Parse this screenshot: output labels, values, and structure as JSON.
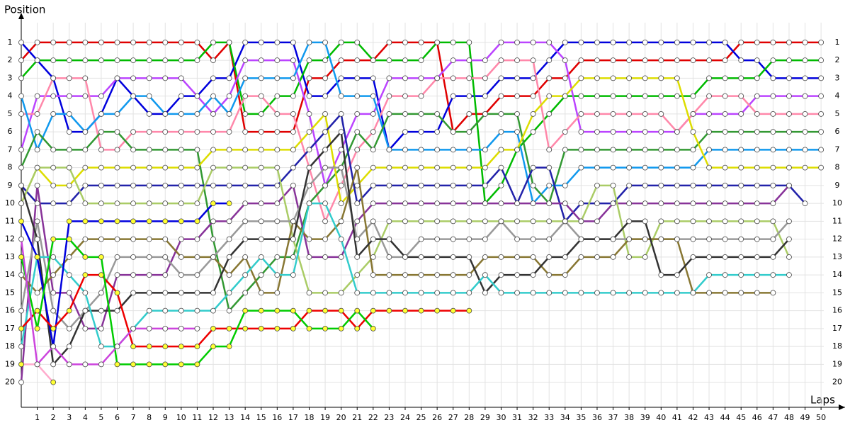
{
  "chart_data": {
    "type": "line",
    "y_axis_title": "Position",
    "x_axis_title": "Laps",
    "x": [
      0,
      1,
      2,
      3,
      4,
      5,
      6,
      7,
      8,
      9,
      10,
      11,
      12,
      13,
      14,
      15,
      16,
      17,
      18,
      19,
      20,
      21,
      22,
      23,
      24,
      25,
      26,
      27,
      28,
      29,
      30,
      31,
      32,
      33,
      34,
      35,
      36,
      37,
      38,
      39,
      40,
      41,
      42,
      43,
      44,
      45,
      46,
      47,
      48,
      49,
      50
    ],
    "xlim": [
      0,
      51.5
    ],
    "xticks": [
      1,
      2,
      3,
      4,
      5,
      6,
      7,
      8,
      9,
      10,
      11,
      12,
      13,
      14,
      15,
      16,
      17,
      18,
      19,
      20,
      21,
      22,
      23,
      24,
      25,
      26,
      27,
      28,
      29,
      30,
      31,
      32,
      33,
      34,
      35,
      36,
      37,
      38,
      39,
      40,
      41,
      42,
      43,
      44,
      45,
      46,
      47,
      48,
      49,
      50
    ],
    "ylim": [
      21.4,
      -0.5
    ],
    "yticks": [
      1,
      2,
      3,
      4,
      5,
      6,
      7,
      8,
      9,
      10,
      11,
      12,
      13,
      14,
      15,
      16,
      17,
      18,
      19,
      20
    ],
    "grid": true,
    "series": [
      {
        "color": "#e00000",
        "marker_fill": "#ffffff",
        "values": [
          2,
          1,
          1,
          1,
          1,
          1,
          1,
          1,
          1,
          1,
          1,
          1,
          2,
          1,
          6,
          6,
          6,
          6,
          3,
          3,
          2,
          2,
          2,
          1,
          1,
          1,
          1,
          6,
          5,
          5,
          4,
          4,
          4,
          3,
          3,
          2,
          2,
          2,
          2,
          2,
          2,
          2,
          2,
          2,
          2,
          1,
          1,
          1,
          1,
          1,
          1
        ]
      },
      {
        "color": "#0000dd",
        "marker_fill": "#ffffff",
        "values": [
          1,
          2,
          3,
          6,
          6,
          5,
          3,
          4,
          5,
          5,
          4,
          4,
          3,
          3,
          1,
          1,
          1,
          1,
          4,
          4,
          3,
          3,
          3,
          7,
          6,
          6,
          6,
          4,
          4,
          4,
          3,
          3,
          3,
          2,
          1,
          1,
          1,
          1,
          1,
          1,
          1,
          1,
          1,
          1,
          1,
          2,
          2,
          3,
          3,
          3,
          3
        ]
      },
      {
        "color": "#00bb00",
        "marker_fill": "#ffffff",
        "values": [
          3,
          2,
          2,
          2,
          2,
          2,
          2,
          2,
          2,
          2,
          2,
          2,
          1,
          1,
          5,
          5,
          4,
          4,
          2,
          2,
          1,
          1,
          2,
          2,
          2,
          2,
          1,
          1,
          1,
          10,
          9,
          7,
          6,
          5,
          4,
          4,
          4,
          4,
          4,
          4,
          4,
          4,
          4,
          3,
          3,
          3,
          3,
          2,
          2,
          2,
          2
        ]
      },
      {
        "color": "#bb44ff",
        "marker_fill": "#ffffff",
        "values": [
          7,
          4,
          4,
          4,
          4,
          4,
          3,
          3,
          3,
          3,
          3,
          4,
          5,
          4,
          2,
          2,
          2,
          2,
          5,
          9,
          7,
          5,
          5,
          3,
          3,
          3,
          3,
          2,
          2,
          2,
          1,
          1,
          1,
          1,
          2,
          6,
          6,
          6,
          6,
          6,
          6,
          6,
          5,
          5,
          5,
          5,
          4,
          4,
          4,
          4,
          4
        ]
      },
      {
        "color": "#ff88aa",
        "marker_fill": "#ffffff",
        "values": [
          5,
          5,
          3,
          3,
          3,
          7,
          7,
          6,
          6,
          6,
          6,
          6,
          6,
          6,
          4,
          4,
          5,
          5,
          8,
          11,
          9,
          7,
          6,
          4,
          4,
          4,
          3,
          3,
          3,
          3,
          2,
          2,
          2,
          7,
          6,
          5,
          5,
          5,
          5,
          5,
          5,
          6,
          5,
          4,
          4,
          4,
          5,
          5,
          5,
          5,
          5
        ]
      },
      {
        "color": "#1199ee",
        "marker_fill": "#ffffff",
        "values": [
          4,
          7,
          5,
          5,
          6,
          5,
          5,
          4,
          4,
          5,
          5,
          5,
          4,
          5,
          3,
          3,
          3,
          3,
          1,
          1,
          4,
          4,
          4,
          7,
          7,
          7,
          7,
          7,
          7,
          7,
          6,
          6,
          10,
          9,
          9,
          8,
          8,
          8,
          8,
          8,
          8,
          8,
          8,
          7,
          7,
          7,
          7,
          7,
          7,
          7,
          7
        ]
      },
      {
        "color": "#339933",
        "marker_fill": "#ffffff",
        "values": [
          8,
          6,
          7,
          7,
          7,
          6,
          6,
          7,
          7,
          7,
          7,
          7,
          12,
          16,
          15,
          14,
          13,
          13,
          10,
          9,
          8,
          6,
          7,
          5,
          5,
          5,
          5,
          6,
          6,
          5,
          5,
          5,
          9,
          10,
          7,
          7,
          7,
          7,
          7,
          7,
          7,
          7,
          7,
          6,
          6,
          6,
          6,
          6,
          6,
          6,
          6
        ]
      },
      {
        "color": "#dddd00",
        "marker_fill": "#ffffff",
        "values": [
          10,
          8,
          9,
          9,
          8,
          8,
          8,
          8,
          8,
          8,
          8,
          8,
          7,
          7,
          7,
          7,
          7,
          7,
          6,
          5,
          10,
          9,
          8,
          8,
          8,
          8,
          8,
          8,
          8,
          8,
          7,
          7,
          5,
          4,
          4,
          3,
          3,
          3,
          3,
          3,
          3,
          3,
          6,
          8,
          8,
          8,
          8,
          8,
          8,
          8,
          8
        ]
      },
      {
        "color": "#2222aa",
        "marker_fill": "#ffffff",
        "values": [
          9,
          10,
          10,
          10,
          9,
          9,
          9,
          9,
          9,
          9,
          9,
          9,
          9,
          9,
          9,
          9,
          9,
          8,
          7,
          6,
          5,
          10,
          9,
          9,
          9,
          9,
          9,
          9,
          9,
          9,
          8,
          10,
          8,
          8,
          11,
          10,
          10,
          10,
          9,
          9,
          9,
          9,
          9,
          9,
          9,
          9,
          9,
          9,
          9,
          10,
          null
        ]
      },
      {
        "color": "#883399",
        "marker_fill": "#ffffff",
        "values": [
          20,
          9,
          15,
          15,
          17,
          17,
          14,
          14,
          14,
          14,
          12,
          12,
          11,
          11,
          10,
          10,
          10,
          9,
          13,
          13,
          13,
          11,
          10,
          10,
          10,
          10,
          10,
          10,
          10,
          10,
          10,
          10,
          10,
          10,
          10,
          11,
          11,
          10,
          10,
          10,
          10,
          10,
          10,
          10,
          10,
          10,
          10,
          10,
          9,
          null,
          null
        ]
      },
      {
        "color": "#aacc66",
        "marker_fill": "#ffffff",
        "values": [
          10,
          8,
          8,
          8,
          10,
          10,
          10,
          10,
          10,
          10,
          10,
          10,
          8,
          8,
          8,
          8,
          8,
          12,
          15,
          15,
          15,
          14,
          13,
          11,
          11,
          11,
          11,
          11,
          11,
          11,
          11,
          11,
          11,
          11,
          11,
          11,
          9,
          9,
          13,
          13,
          11,
          11,
          11,
          11,
          11,
          11,
          11,
          11,
          13,
          null,
          null
        ]
      },
      {
        "color": "#999999",
        "marker_fill": "#ffffff",
        "values": [
          16,
          11,
          16,
          17,
          16,
          15,
          13,
          13,
          13,
          13,
          14,
          14,
          13,
          12,
          11,
          11,
          11,
          11,
          9,
          8,
          8,
          12,
          11,
          13,
          13,
          12,
          12,
          12,
          12,
          12,
          11,
          12,
          12,
          12,
          11,
          12,
          12,
          12,
          12,
          12,
          12,
          12,
          12,
          12,
          12,
          12,
          12,
          12,
          11,
          null,
          null
        ]
      },
      {
        "color": "#887733",
        "marker_fill": "#ffffff",
        "values": [
          14,
          15,
          14,
          13,
          12,
          12,
          12,
          12,
          12,
          12,
          13,
          13,
          13,
          14,
          13,
          15,
          15,
          11,
          12,
          12,
          11,
          8,
          14,
          14,
          14,
          14,
          14,
          14,
          14,
          13,
          13,
          13,
          13,
          14,
          14,
          13,
          13,
          13,
          12,
          12,
          12,
          12,
          15,
          15,
          15,
          15,
          15,
          15,
          null,
          null,
          null
        ]
      },
      {
        "color": "#333333",
        "marker_fill": "#ffffff",
        "values": [
          9,
          12,
          19,
          18,
          16,
          16,
          16,
          15,
          15,
          15,
          15,
          15,
          15,
          13,
          12,
          12,
          12,
          12,
          8,
          7,
          6,
          13,
          12,
          12,
          13,
          13,
          13,
          13,
          13,
          15,
          14,
          14,
          14,
          13,
          13,
          12,
          12,
          12,
          11,
          11,
          14,
          14,
          13,
          13,
          13,
          13,
          13,
          13,
          12,
          null,
          null
        ]
      },
      {
        "color": "#33cccc",
        "marker_fill": "#ffffff",
        "values": [
          18,
          13,
          13,
          14,
          15,
          18,
          18,
          17,
          16,
          16,
          16,
          16,
          16,
          15,
          14,
          13,
          14,
          14,
          10,
          10,
          12,
          15,
          15,
          15,
          15,
          15,
          15,
          15,
          15,
          14,
          15,
          15,
          15,
          15,
          15,
          15,
          15,
          15,
          15,
          15,
          15,
          15,
          15,
          14,
          14,
          14,
          14,
          14,
          14,
          null,
          null
        ]
      },
      {
        "color": "#0000dd",
        "marker_fill": "#ffff33",
        "values": [
          11,
          13,
          18,
          11,
          11,
          11,
          11,
          11,
          11,
          11,
          11,
          11,
          10,
          10,
          null,
          null,
          null,
          null,
          null,
          null,
          null,
          null,
          null,
          null,
          null,
          null,
          null,
          null,
          null,
          null,
          null,
          null,
          null,
          null,
          null,
          null,
          null,
          null,
          null,
          null,
          null,
          null,
          null,
          null,
          null,
          null,
          null,
          null,
          null,
          null,
          null
        ]
      },
      {
        "color": "#ee0000",
        "marker_fill": "#ffff33",
        "values": [
          17,
          16,
          17,
          16,
          14,
          14,
          15,
          18,
          18,
          18,
          18,
          18,
          17,
          17,
          17,
          17,
          17,
          17,
          16,
          16,
          16,
          17,
          16,
          16,
          16,
          16,
          16,
          16,
          16,
          null,
          null,
          null,
          null,
          null,
          null,
          null,
          null,
          null,
          null,
          null,
          null,
          null,
          null,
          null,
          null,
          null,
          null,
          null,
          null,
          null,
          null
        ]
      },
      {
        "color": "#00cc00",
        "marker_fill": "#ffff33",
        "values": [
          13,
          17,
          12,
          12,
          13,
          13,
          19,
          19,
          19,
          19,
          19,
          19,
          18,
          18,
          16,
          16,
          16,
          16,
          17,
          17,
          17,
          16,
          17,
          null,
          null,
          null,
          null,
          null,
          null,
          null,
          null,
          null,
          null,
          null,
          null,
          null,
          null,
          null,
          null,
          null,
          null,
          null,
          null,
          null,
          null,
          null,
          null,
          null,
          null,
          null,
          null
        ]
      },
      {
        "color": "#ffaacc",
        "marker_fill": "#ffff33",
        "values": [
          19,
          19,
          20,
          null,
          null,
          null,
          null,
          null,
          null,
          null,
          null,
          null,
          null,
          null,
          null,
          null,
          null,
          null,
          null,
          null,
          null,
          null,
          null,
          null,
          null,
          null,
          null,
          null,
          null,
          null,
          null,
          null,
          null,
          null,
          null,
          null,
          null,
          null,
          null,
          null,
          null,
          null,
          null,
          null,
          null,
          null,
          null,
          null,
          null,
          null,
          null
        ]
      },
      {
        "color": "#cc44dd",
        "marker_fill": "#ffffff",
        "values": [
          12,
          19,
          18,
          19,
          19,
          19,
          18,
          17,
          17,
          17,
          17,
          17,
          null,
          null,
          null,
          null,
          null,
          null,
          null,
          null,
          null,
          null,
          null,
          null,
          null,
          null,
          null,
          null,
          null,
          null,
          null,
          null,
          null,
          null,
          null,
          null,
          null,
          null,
          null,
          null,
          null,
          null,
          null,
          null,
          null,
          null,
          null,
          null,
          null,
          null,
          null
        ]
      }
    ]
  }
}
